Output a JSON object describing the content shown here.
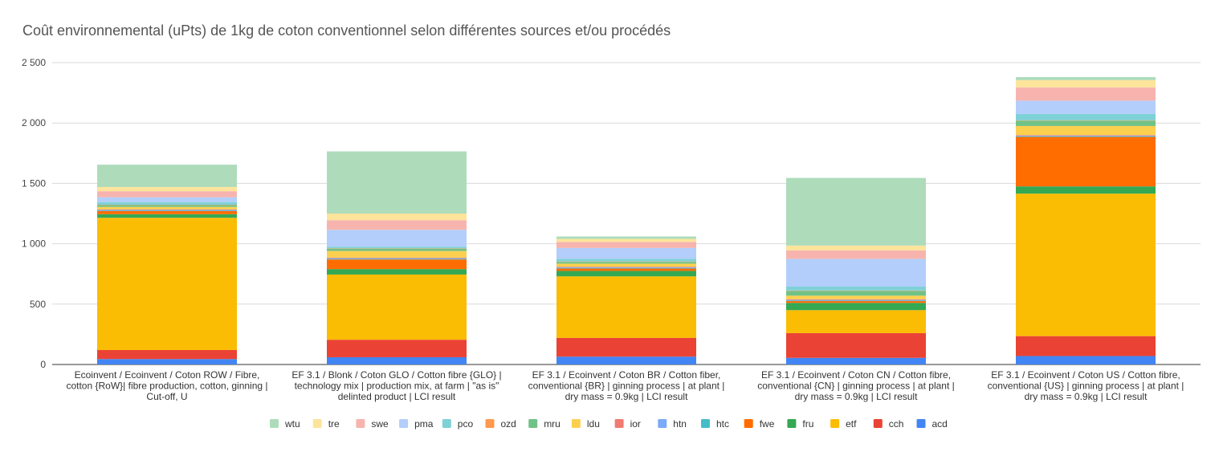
{
  "chart_data": {
    "type": "bar",
    "stacked": true,
    "title": "Coût environnemental (uPts) de 1kg de coton conventionnel selon différentes sources et/ou procédés",
    "ylim": [
      0,
      2500
    ],
    "yticks": [
      0,
      500,
      1000,
      1500,
      2000,
      2500
    ],
    "ytick_labels": [
      "0",
      "500",
      "1 000",
      "1 500",
      "2 000",
      "2 500"
    ],
    "grid": true,
    "legend_position": "bottom",
    "categories": [
      [
        "Ecoinvent / Ecoinvent / Coton ROW / Fibre,",
        "cotton {RoW}| fibre production, cotton, ginning |",
        "Cut-off, U"
      ],
      [
        "EF 3.1 / Blonk / Coton GLO / Cotton fibre {GLO} |",
        "technology mix | production mix, at farm | \"as is\"",
        "delinted product | LCI result"
      ],
      [
        "EF 3.1 / Ecoinvent / Coton BR / Cotton fiber,",
        "conventional {BR} | ginning process | at plant |",
        "dry mass = 0.9kg | LCI result"
      ],
      [
        "EF 3.1 / Ecoinvent / Coton CN / Cotton fibre,",
        "conventional {CN} | ginning process | at plant |",
        "dry mass = 0.9kg | LCI result"
      ],
      [
        "EF 3.1 / Ecoinvent / Coton US / Cotton fibre,",
        "conventional {US} | ginning process | at plant |",
        "dry mass = 0.9kg | LCI result"
      ]
    ],
    "series": [
      {
        "name": "acd",
        "color": "#4285f4",
        "values": [
          45,
          60,
          65,
          55,
          70
        ]
      },
      {
        "name": "cch",
        "color": "#ea4335",
        "values": [
          75,
          145,
          155,
          205,
          165
        ]
      },
      {
        "name": "etf",
        "color": "#fbbc04",
        "values": [
          1095,
          540,
          510,
          190,
          1180
        ]
      },
      {
        "name": "fru",
        "color": "#34a853",
        "values": [
          30,
          45,
          45,
          60,
          60
        ]
      },
      {
        "name": "fwe",
        "color": "#ff6d01",
        "values": [
          25,
          80,
          20,
          15,
          410
        ]
      },
      {
        "name": "htc",
        "color": "#46bdc6",
        "values": [
          5,
          5,
          5,
          5,
          5
        ]
      },
      {
        "name": "htn",
        "color": "#7baaf7",
        "values": [
          5,
          5,
          5,
          5,
          5
        ]
      },
      {
        "name": "ior",
        "color": "#f07b72",
        "values": [
          5,
          5,
          5,
          5,
          5
        ]
      },
      {
        "name": "ldu",
        "color": "#fcd04f",
        "values": [
          20,
          55,
          25,
          30,
          75
        ]
      },
      {
        "name": "mru",
        "color": "#71c287",
        "values": [
          15,
          20,
          15,
          40,
          45
        ]
      },
      {
        "name": "ozd",
        "color": "#ff994d",
        "values": [
          3,
          3,
          3,
          3,
          3
        ]
      },
      {
        "name": "pco",
        "color": "#7ed1d7",
        "values": [
          22,
          12,
          22,
          32,
          52
        ]
      },
      {
        "name": "pma",
        "color": "#b3cefb",
        "values": [
          40,
          140,
          90,
          230,
          110
        ]
      },
      {
        "name": "swe",
        "color": "#f7b4ae",
        "values": [
          50,
          80,
          50,
          70,
          110
        ]
      },
      {
        "name": "tre",
        "color": "#fde49b",
        "values": [
          35,
          55,
          25,
          40,
          60
        ]
      },
      {
        "name": "wtu",
        "color": "#aedcba",
        "values": [
          185,
          515,
          20,
          560,
          25
        ]
      }
    ]
  }
}
